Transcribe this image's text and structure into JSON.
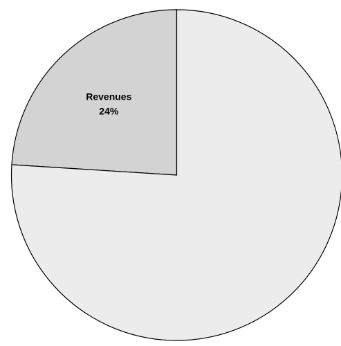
{
  "chart_data": {
    "type": "pie",
    "slices": [
      {
        "label": "Revenues",
        "value": 24,
        "value_label": "24%",
        "color": "#d3d3d3",
        "show_label": true
      },
      {
        "label": "",
        "value": 76,
        "value_label": "",
        "color": "#ececec",
        "show_label": false
      }
    ],
    "start_angle_deg": 0,
    "direction": "counterclockwise",
    "legend": "none"
  }
}
